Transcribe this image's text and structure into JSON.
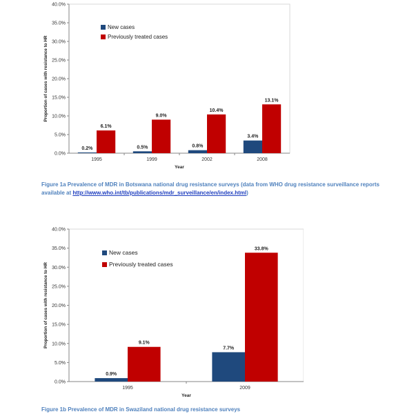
{
  "chart_data": [
    {
      "type": "bar",
      "categories": [
        "1995",
        "1999",
        "2002",
        "2008"
      ],
      "series": [
        {
          "name": "New cases",
          "values": [
            0.2,
            0.5,
            0.8,
            3.4
          ],
          "labels": [
            "0.2%",
            "0.5%",
            "0.8%",
            "3.4%"
          ],
          "color": "#1f497d"
        },
        {
          "name": "Previously treated cases",
          "values": [
            6.1,
            9.0,
            10.4,
            13.1
          ],
          "labels": [
            "6.1%",
            "9.0%",
            "10.4%",
            "13.1%"
          ],
          "color": "#c00000"
        }
      ],
      "xlabel": "Year",
      "ylabel": "Proportion of cases with resistance to HR",
      "ylim": [
        0,
        40
      ],
      "yticks": [
        0,
        5,
        10,
        15,
        20,
        25,
        30,
        35,
        40
      ],
      "ytick_labels": [
        "0.0%",
        "5.0%",
        "10.0%",
        "15.0%",
        "20.0%",
        "25.0%",
        "30.0%",
        "35.0%",
        "40.0%"
      ],
      "legend_position": "top-left",
      "grid": false
    },
    {
      "type": "bar",
      "categories": [
        "1995",
        "2009"
      ],
      "series": [
        {
          "name": "New cases",
          "values": [
            0.9,
            7.7
          ],
          "labels": [
            "0.9%",
            "7.7%"
          ],
          "color": "#1f497d"
        },
        {
          "name": "Previously treated cases",
          "values": [
            9.1,
            33.8
          ],
          "labels": [
            "9.1%",
            "33.8%"
          ],
          "color": "#c00000"
        }
      ],
      "xlabel": "Year",
      "ylabel": "Proportion of cases with resistance to HR",
      "ylim": [
        0,
        40
      ],
      "yticks": [
        0,
        5,
        10,
        15,
        20,
        25,
        30,
        35,
        40
      ],
      "ytick_labels": [
        "0.0%",
        "5.0%",
        "10.0%",
        "15.0%",
        "20.0%",
        "25.0%",
        "30.0%",
        "35.0%",
        "40.0%"
      ],
      "legend_position": "top-left",
      "grid": false
    }
  ],
  "captions": {
    "a_text": "Figure 1a Prevalence of MDR in Botswana national drug resistance surveys (data from WHO drug resistance surveillance reports available at ",
    "a_link": "http://www.who.int/tb/publications/mdr_surveillance/en/index.html",
    "a_tail": ")",
    "b_text": "Figure 1b Prevalence of MDR in Swaziland national drug resistance surveys"
  }
}
